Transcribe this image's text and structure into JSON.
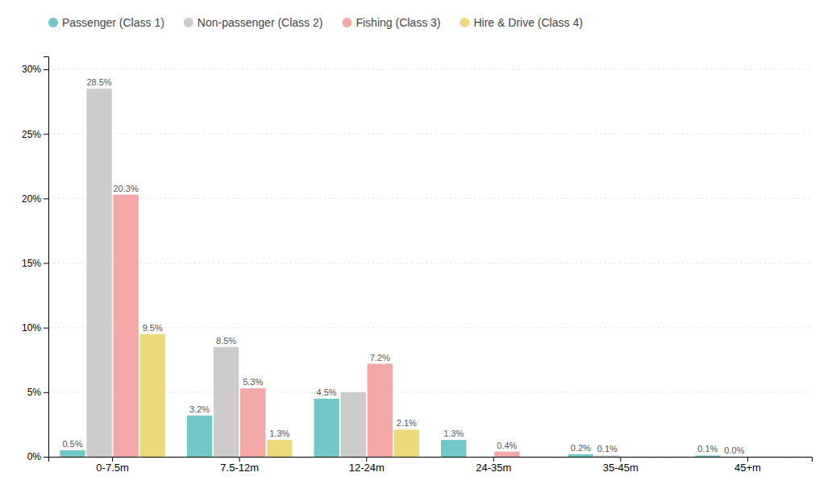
{
  "chart_data": {
    "type": "bar",
    "categories": [
      "0-7.5m",
      "7.5-12m",
      "12-24m",
      "24-35m",
      "35-45m",
      "45+m"
    ],
    "series": [
      {
        "name": "Passenger (Class 1)",
        "color": "#72c7c7",
        "values": [
          0.5,
          3.2,
          4.5,
          1.3,
          0.2,
          0.1
        ],
        "value_labels": [
          "0.5%",
          "3.2%",
          "4.5%",
          "1.3%",
          "0.2%",
          "0.1%"
        ]
      },
      {
        "name": "Non-passenger (Class 2)",
        "color": "#cccccc",
        "values": [
          28.5,
          8.5,
          5.0,
          0.0,
          0.1,
          0.0
        ],
        "value_labels": [
          "28.5%",
          "8.5%",
          null,
          null,
          "0.1%",
          "0.0%"
        ]
      },
      {
        "name": "Fishing (Class 3)",
        "color": "#f4a9a8",
        "values": [
          20.3,
          5.3,
          7.2,
          0.4,
          0.0,
          0.0
        ],
        "value_labels": [
          "20.3%",
          "5.3%",
          "7.2%",
          "0.4%",
          null,
          null
        ]
      },
      {
        "name": "Hire & Drive (Class 4)",
        "color": "#edd97a",
        "values": [
          9.5,
          1.3,
          2.1,
          0.0,
          0.0,
          0.0
        ],
        "value_labels": [
          "9.5%",
          "1.3%",
          "2.1%",
          null,
          null,
          null
        ]
      }
    ],
    "ylim": [
      0,
      31
    ],
    "yticks": [
      {
        "value": 0,
        "label": "0%"
      },
      {
        "value": 5,
        "label": "5%"
      },
      {
        "value": 10,
        "label": "10%"
      },
      {
        "value": 15,
        "label": "15%"
      },
      {
        "value": 20,
        "label": "20%"
      },
      {
        "value": 25,
        "label": "25%"
      },
      {
        "value": 30,
        "label": "30%"
      }
    ],
    "grid": true,
    "legend": "upper left",
    "data_labels": true
  }
}
